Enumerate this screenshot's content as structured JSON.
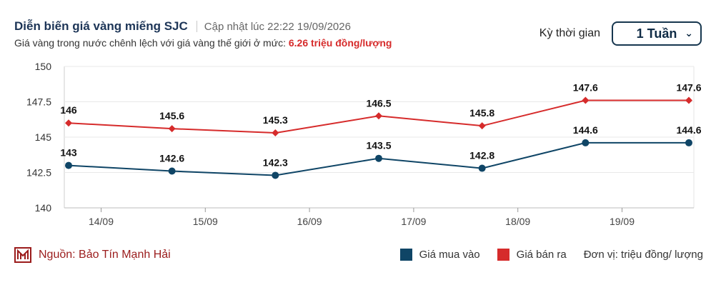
{
  "header": {
    "title": "Diễn biến giá vàng miếng SJC",
    "updated": "Cập nhật lúc 22:22 19/09/2026",
    "subtitle_prefix": "Giá vàng trong nước chênh lệch với giá vàng thế giới ở mức: ",
    "subtitle_value": "6.26 triệu đồng/lượng"
  },
  "period": {
    "label": "Kỳ thời gian",
    "selected": "1 Tuần"
  },
  "footer": {
    "source": "Nguồn: Bảo Tín Mạnh Hải",
    "legend_buy": "Giá mua vào",
    "legend_sell": "Giá bán ra",
    "unit": "Đơn vị: triệu đồng/ lượng"
  },
  "colors": {
    "buy": "#0f4566",
    "sell": "#d62b2b",
    "brand": "#9b1c1c"
  },
  "chart_data": {
    "type": "line",
    "x_ticks": [
      "14/09",
      "15/09",
      "16/09",
      "17/09",
      "18/09",
      "19/09"
    ],
    "y_ticks": [
      "140",
      "142.5",
      "145",
      "147.5",
      "150"
    ],
    "ylim": [
      140,
      150
    ],
    "series": [
      {
        "name": "Giá bán ra",
        "color": "#d62b2b",
        "marker": "diamond",
        "labels": [
          "146",
          "145.6",
          "145.3",
          "146.5",
          "145.8",
          "147.6",
          "147.6"
        ],
        "values": [
          146,
          145.6,
          145.3,
          146.5,
          145.8,
          147.6,
          147.6
        ]
      },
      {
        "name": "Giá mua vào",
        "color": "#0f4566",
        "marker": "circle",
        "labels": [
          "143",
          "142.6",
          "142.3",
          "143.5",
          "142.8",
          "144.6",
          "144.6"
        ],
        "values": [
          143,
          142.6,
          142.3,
          143.5,
          142.8,
          144.6,
          144.6
        ]
      }
    ],
    "grid": true
  }
}
